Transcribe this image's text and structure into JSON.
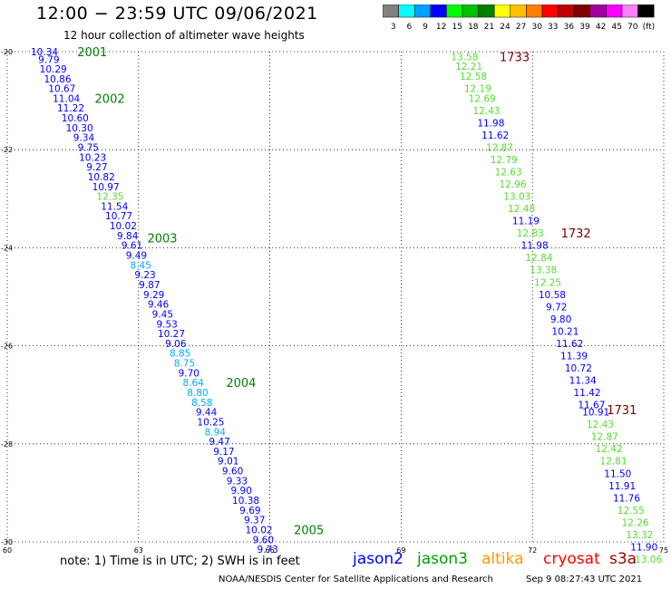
{
  "header": {
    "title": "12:00 − 23:59 UTC 09/06/2021",
    "subtitle": "12 hour collection of altimeter wave heights"
  },
  "colorbar": {
    "labels": [
      "3",
      "6",
      "9",
      "12",
      "15",
      "18",
      "21",
      "24",
      "27",
      "30",
      "33",
      "36",
      "39",
      "42",
      "45",
      "70",
      "(ft)"
    ],
    "colors": [
      "#808080",
      "#00ffff",
      "#00a0ff",
      "#0000ff",
      "#00ff00",
      "#00c000",
      "#008000",
      "#ffff00",
      "#ffc000",
      "#ff8000",
      "#ff0000",
      "#c00000",
      "#800000",
      "#a000a0",
      "#ff00ff",
      "#ff80ff",
      "#000000"
    ]
  },
  "footer": {
    "note": "note:  1) Time is in UTC;  2) SWH is in feet",
    "credit": "NOAA/NESDIS Center for Satellite Applications and Research",
    "timestamp": "Sep  9 08:27:43 UTC 2021"
  },
  "legend": [
    {
      "name": "jason2",
      "color": "#0000ff"
    },
    {
      "name": "jason3",
      "color": "#00a000"
    },
    {
      "name": "altika",
      "color": "#ff9900"
    },
    {
      "name": "cryosat",
      "color": "#ff0000"
    },
    {
      "name": "s3a",
      "color": "#990000"
    }
  ],
  "chart_data": {
    "type": "scatter",
    "xlim": [
      60,
      75
    ],
    "ylim": [
      -30,
      -20
    ],
    "xticks": [
      "60",
      "63",
      "66",
      "69",
      "72",
      "75"
    ],
    "yticks": [
      "-20",
      "-22",
      "-24",
      "-26",
      "-28",
      "-30"
    ],
    "grid": true,
    "series": [
      {
        "name": "track 1 (left)",
        "points": [
          {
            "x": 60.85,
            "y": -20.0,
            "label": "10.34",
            "color": "#0000ff"
          },
          {
            "x": 60.95,
            "y": -20.16,
            "label": "9.79",
            "color": "#0000ff"
          },
          {
            "x": 61.05,
            "y": -20.35,
            "label": "10.29",
            "color": "#0000ff"
          },
          {
            "x": 61.15,
            "y": -20.55,
            "label": "10.86",
            "color": "#0000ff"
          },
          {
            "x": 61.25,
            "y": -20.75,
            "label": "10.67",
            "color": "#0000ff"
          },
          {
            "x": 61.35,
            "y": -20.95,
            "label": "11.04",
            "color": "#0000ff"
          },
          {
            "x": 61.45,
            "y": -21.15,
            "label": "11.22",
            "color": "#0000ff"
          },
          {
            "x": 61.55,
            "y": -21.35,
            "label": "10.60",
            "color": "#0000ff"
          },
          {
            "x": 61.65,
            "y": -21.55,
            "label": "10.30",
            "color": "#0000ff"
          },
          {
            "x": 61.75,
            "y": -21.75,
            "label": "9.34",
            "color": "#0000ff"
          },
          {
            "x": 61.85,
            "y": -21.95,
            "label": "9.75",
            "color": "#0000ff"
          },
          {
            "x": 61.95,
            "y": -22.15,
            "label": "10.23",
            "color": "#0000ff"
          },
          {
            "x": 62.05,
            "y": -22.35,
            "label": "9.27",
            "color": "#0000ff"
          },
          {
            "x": 62.15,
            "y": -22.55,
            "label": "10.82",
            "color": "#0000ff"
          },
          {
            "x": 62.25,
            "y": -22.75,
            "label": "10.97",
            "color": "#0000ff"
          },
          {
            "x": 62.35,
            "y": -22.95,
            "label": "12.35",
            "color": "#55dd33"
          },
          {
            "x": 62.45,
            "y": -23.15,
            "label": "11.54",
            "color": "#0000ff"
          },
          {
            "x": 62.55,
            "y": -23.35,
            "label": "10.77",
            "color": "#0000ff"
          },
          {
            "x": 62.65,
            "y": -23.55,
            "label": "10.02",
            "color": "#0000ff"
          },
          {
            "x": 62.75,
            "y": -23.75,
            "label": "9.84",
            "color": "#0000ff"
          },
          {
            "x": 62.85,
            "y": -23.95,
            "label": "9.61",
            "color": "#0000ff"
          },
          {
            "x": 62.95,
            "y": -24.15,
            "label": "9.49",
            "color": "#0000ff"
          },
          {
            "x": 63.05,
            "y": -24.35,
            "label": "8.45",
            "color": "#00aaff"
          },
          {
            "x": 63.15,
            "y": -24.55,
            "label": "9.23",
            "color": "#0000ff"
          },
          {
            "x": 63.25,
            "y": -24.75,
            "label": "9.87",
            "color": "#0000ff"
          },
          {
            "x": 63.35,
            "y": -24.95,
            "label": "9.29",
            "color": "#0000ff"
          },
          {
            "x": 63.45,
            "y": -25.15,
            "label": "9.46",
            "color": "#0000ff"
          },
          {
            "x": 63.55,
            "y": -25.35,
            "label": "9.45",
            "color": "#0000ff"
          },
          {
            "x": 63.65,
            "y": -25.55,
            "label": "9.53",
            "color": "#0000ff"
          },
          {
            "x": 63.75,
            "y": -25.75,
            "label": "10.27",
            "color": "#0000ff"
          },
          {
            "x": 63.85,
            "y": -25.95,
            "label": "9.06",
            "color": "#0000ff"
          },
          {
            "x": 63.95,
            "y": -26.15,
            "label": "8.85",
            "color": "#00aaff"
          },
          {
            "x": 64.05,
            "y": -26.35,
            "label": "8.75",
            "color": "#00aaff"
          },
          {
            "x": 64.15,
            "y": -26.55,
            "label": "9.70",
            "color": "#0000ff"
          },
          {
            "x": 64.25,
            "y": -26.75,
            "label": "8.64",
            "color": "#00aaff"
          },
          {
            "x": 64.35,
            "y": -26.95,
            "label": "8.80",
            "color": "#00aaff"
          },
          {
            "x": 64.45,
            "y": -27.15,
            "label": "8.58",
            "color": "#00aaff"
          },
          {
            "x": 64.55,
            "y": -27.35,
            "label": "9.44",
            "color": "#0000ff"
          },
          {
            "x": 64.65,
            "y": -27.55,
            "label": "10.25",
            "color": "#0000ff"
          },
          {
            "x": 64.75,
            "y": -27.75,
            "label": "8.94",
            "color": "#00aaff"
          },
          {
            "x": 64.85,
            "y": -27.95,
            "label": "9.47",
            "color": "#0000ff"
          },
          {
            "x": 64.95,
            "y": -28.15,
            "label": "9.17",
            "color": "#0000ff"
          },
          {
            "x": 65.05,
            "y": -28.35,
            "label": "9.01",
            "color": "#0000ff"
          },
          {
            "x": 65.15,
            "y": -28.55,
            "label": "9.60",
            "color": "#0000ff"
          },
          {
            "x": 65.25,
            "y": -28.75,
            "label": "9.33",
            "color": "#0000ff"
          },
          {
            "x": 65.35,
            "y": -28.95,
            "label": "9.90",
            "color": "#0000ff"
          },
          {
            "x": 65.45,
            "y": -29.15,
            "label": "10.38",
            "color": "#0000ff"
          },
          {
            "x": 65.55,
            "y": -29.35,
            "label": "9.69",
            "color": "#0000ff"
          },
          {
            "x": 65.65,
            "y": -29.55,
            "label": "9.37",
            "color": "#0000ff"
          },
          {
            "x": 65.75,
            "y": -29.75,
            "label": "10.02",
            "color": "#0000ff"
          },
          {
            "x": 65.85,
            "y": -29.95,
            "label": "9.60",
            "color": "#0000ff"
          },
          {
            "x": 65.95,
            "y": -30.15,
            "label": "9.73",
            "color": "#0000ff"
          }
        ]
      },
      {
        "name": "track 2 (right)",
        "points": [
          {
            "x": 70.45,
            "y": -20.1,
            "label": "13.58",
            "color": "#55dd33"
          },
          {
            "x": 70.55,
            "y": -20.3,
            "label": "12.21",
            "color": "#55dd33"
          },
          {
            "x": 70.65,
            "y": -20.5,
            "label": "12.58",
            "color": "#55dd33"
          },
          {
            "x": 70.75,
            "y": -20.75,
            "label": "12.19",
            "color": "#55dd33"
          },
          {
            "x": 70.85,
            "y": -20.95,
            "label": "12.69",
            "color": "#55dd33"
          },
          {
            "x": 70.95,
            "y": -21.2,
            "label": "12.43",
            "color": "#55dd33"
          },
          {
            "x": 71.05,
            "y": -21.45,
            "label": "11.98",
            "color": "#0000ff"
          },
          {
            "x": 71.15,
            "y": -21.7,
            "label": "11.62",
            "color": "#0000ff"
          },
          {
            "x": 71.25,
            "y": -21.95,
            "label": "12.87",
            "color": "#55dd33"
          },
          {
            "x": 71.35,
            "y": -22.2,
            "label": "12.79",
            "color": "#55dd33"
          },
          {
            "x": 71.45,
            "y": -22.45,
            "label": "12.63",
            "color": "#55dd33"
          },
          {
            "x": 71.55,
            "y": -22.7,
            "label": "12.96",
            "color": "#55dd33"
          },
          {
            "x": 71.65,
            "y": -22.95,
            "label": "13.03",
            "color": "#55dd33"
          },
          {
            "x": 71.75,
            "y": -23.2,
            "label": "12.48",
            "color": "#55dd33"
          },
          {
            "x": 71.85,
            "y": -23.45,
            "label": "11.19",
            "color": "#0000ff"
          },
          {
            "x": 71.95,
            "y": -23.7,
            "label": "12.83",
            "color": "#55dd33"
          },
          {
            "x": 72.05,
            "y": -23.95,
            "label": "11.98",
            "color": "#0000ff"
          },
          {
            "x": 72.15,
            "y": -24.2,
            "label": "12.84",
            "color": "#55dd33"
          },
          {
            "x": 72.25,
            "y": -24.45,
            "label": "13.38",
            "color": "#55dd33"
          },
          {
            "x": 72.35,
            "y": -24.7,
            "label": "12.25",
            "color": "#55dd33"
          },
          {
            "x": 72.45,
            "y": -24.95,
            "label": "10.58",
            "color": "#0000ff"
          },
          {
            "x": 72.55,
            "y": -25.2,
            "label": "9.72",
            "color": "#0000ff"
          },
          {
            "x": 72.65,
            "y": -25.45,
            "label": "9.80",
            "color": "#0000ff"
          },
          {
            "x": 72.75,
            "y": -25.7,
            "label": "10.21",
            "color": "#0000ff"
          },
          {
            "x": 72.85,
            "y": -25.95,
            "label": "11.62",
            "color": "#0000ff"
          },
          {
            "x": 72.95,
            "y": -26.2,
            "label": "11.39",
            "color": "#0000ff"
          },
          {
            "x": 73.05,
            "y": -26.45,
            "label": "10.72",
            "color": "#0000ff"
          },
          {
            "x": 73.15,
            "y": -26.7,
            "label": "11.34",
            "color": "#0000ff"
          },
          {
            "x": 73.25,
            "y": -26.95,
            "label": "11.42",
            "color": "#0000ff"
          },
          {
            "x": 73.35,
            "y": -27.2,
            "label": "11.67",
            "color": "#0000ff"
          },
          {
            "x": 73.45,
            "y": -27.35,
            "label": "10.91",
            "color": "#0000ff"
          },
          {
            "x": 73.55,
            "y": -27.6,
            "label": "12.43",
            "color": "#55dd33"
          },
          {
            "x": 73.65,
            "y": -27.85,
            "label": "12.87",
            "color": "#55dd33"
          },
          {
            "x": 73.75,
            "y": -28.1,
            "label": "12.42",
            "color": "#55dd33"
          },
          {
            "x": 73.85,
            "y": -28.35,
            "label": "12.81",
            "color": "#55dd33"
          },
          {
            "x": 73.95,
            "y": -28.6,
            "label": "11.50",
            "color": "#0000ff"
          },
          {
            "x": 74.05,
            "y": -28.85,
            "label": "11.91",
            "color": "#0000ff"
          },
          {
            "x": 74.15,
            "y": -29.1,
            "label": "11.76",
            "color": "#0000ff"
          },
          {
            "x": 74.25,
            "y": -29.35,
            "label": "12.55",
            "color": "#55dd33"
          },
          {
            "x": 74.35,
            "y": -29.6,
            "label": "12.26",
            "color": "#55dd33"
          },
          {
            "x": 74.45,
            "y": -29.85,
            "label": "13.32",
            "color": "#55dd33"
          },
          {
            "x": 74.55,
            "y": -30.1,
            "label": "11.90",
            "color": "#0000ff"
          },
          {
            "x": 74.65,
            "y": -30.35,
            "label": "13.06",
            "color": "#55dd33"
          }
        ]
      }
    ],
    "annotations": [
      {
        "text": "2001",
        "x": 61.6,
        "y": -20.0,
        "color": "#008000"
      },
      {
        "text": "2002",
        "x": 62.0,
        "y": -20.95,
        "color": "#008000"
      },
      {
        "text": "2003",
        "x": 63.2,
        "y": -23.8,
        "color": "#008000"
      },
      {
        "text": "2004",
        "x": 65.0,
        "y": -26.75,
        "color": "#008000"
      },
      {
        "text": "2005",
        "x": 66.55,
        "y": -29.75,
        "color": "#008000"
      },
      {
        "text": "1733",
        "x": 71.25,
        "y": -20.1,
        "color": "#800000"
      },
      {
        "text": "1732",
        "x": 72.65,
        "y": -23.7,
        "color": "#800000"
      },
      {
        "text": "1731",
        "x": 73.7,
        "y": -27.3,
        "color": "#800000"
      }
    ]
  }
}
